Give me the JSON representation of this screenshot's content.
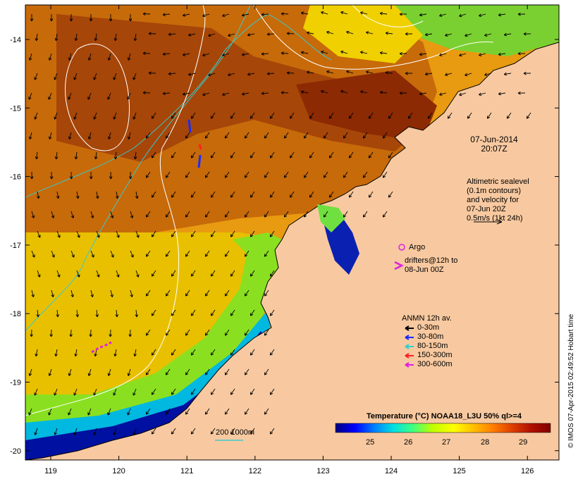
{
  "map": {
    "x_ticks": [
      "119",
      "120",
      "121",
      "122",
      "123",
      "124",
      "125",
      "126"
    ],
    "y_ticks": [
      "-14",
      "-15",
      "-16",
      "-17",
      "-18",
      "-19",
      "-20"
    ],
    "land_color": "#f8c9a0",
    "contour_color": "#ffffff",
    "isobath_color": "#3cc8c8"
  },
  "date_stamp": {
    "line1": "07-Jun-2014",
    "line2": "20:07Z"
  },
  "altimetry_note": {
    "lines": [
      "Altimetric sealevel",
      "(0.1m contours)",
      "and velocity for",
      "07-Jun 20Z",
      "0.5m/s (1kt 24h)"
    ]
  },
  "argo": {
    "label": "Argo",
    "color": "#e020e0"
  },
  "drifters": {
    "lines": [
      "drifters@12h to",
      "08-Jun 00Z"
    ],
    "color": "#e020e0"
  },
  "anmn": {
    "title": "ANMN 12h av.",
    "items": [
      {
        "label": "0-30m",
        "color": "#000000"
      },
      {
        "label": "30-80m",
        "color": "#1a2cff"
      },
      {
        "label": "80-150m",
        "color": "#30d0d0"
      },
      {
        "label": "150-300m",
        "color": "#ff2020"
      },
      {
        "label": "300-600m",
        "color": "#e020e0"
      }
    ]
  },
  "isobath_legend": {
    "label": "200  1000m"
  },
  "colorbar": {
    "title": "Temperature (°C) NOAA18_L3U 50% ql>=4",
    "ticks": [
      "25",
      "26",
      "27",
      "28",
      "29"
    ],
    "range": [
      24.0,
      29.6
    ],
    "colors": [
      "#000080",
      "#0000ff",
      "#0080ff",
      "#00e0e0",
      "#40ff80",
      "#c0ff00",
      "#ffff00",
      "#ffc000",
      "#ff8000",
      "#e04000",
      "#b01000",
      "#800000"
    ]
  },
  "credit": "© IMOS 07-Apr-2015 02:49:52 Hobart time"
}
